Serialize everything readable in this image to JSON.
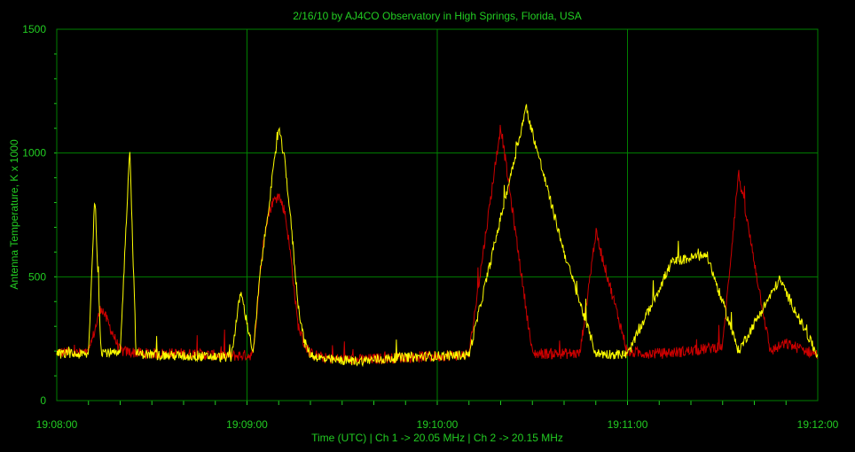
{
  "colors": {
    "background": "#000000",
    "grid": "#008000",
    "text": "#22cc22",
    "ch1": "#cc0000",
    "ch2": "#ffff00"
  },
  "chart_data": {
    "type": "line",
    "title": "2/16/10  by  AJ4CO Observatory  in  High Springs, Florida, USA",
    "xlabel": "Time (UTC)  |  Ch 1 -> 20.05 MHz  |  Ch 2 -> 20.15 MHz",
    "ylabel": "Antenna Temperature, K x 1000",
    "xlim": [
      "19:08:00",
      "19:12:00"
    ],
    "ylim": [
      0,
      1500
    ],
    "x_ticks": [
      "19:08:00",
      "19:09:00",
      "19:10:00",
      "19:11:00",
      "19:12:00"
    ],
    "y_ticks": [
      "0",
      "500",
      "1000",
      "1500"
    ],
    "grid": true,
    "legend": "none",
    "series": [
      {
        "color": "#cc0000",
        "x_seconds_after_19_08_00": [
          0,
          10,
          14,
          20,
          28,
          40,
          55,
          62,
          64,
          66,
          68,
          70,
          72,
          74,
          76,
          78,
          80,
          85,
          95,
          110,
          130,
          140,
          150,
          165,
          170,
          180,
          190,
          200,
          210,
          215,
          225,
          230,
          240
        ],
        "values": [
          195,
          190,
          380,
          200,
          190,
          190,
          180,
          185,
          500,
          720,
          800,
          830,
          760,
          560,
          310,
          230,
          190,
          170,
          165,
          175,
          185,
          1110,
          190,
          190,
          680,
          195,
          190,
          200,
          220,
          920,
          200,
          230,
          185
        ]
      },
      {
        "color": "#ffff00",
        "x_seconds_after_19_08_00": [
          0,
          10,
          12,
          14,
          20,
          23,
          25,
          30,
          40,
          55,
          58,
          62,
          64,
          66,
          68,
          70,
          72,
          74,
          76,
          78,
          80,
          85,
          95,
          110,
          130,
          148,
          160,
          170,
          180,
          194,
          205,
          215,
          228,
          240
        ],
        "values": [
          190,
          185,
          830,
          200,
          185,
          1030,
          190,
          185,
          180,
          175,
          440,
          190,
          500,
          700,
          900,
          1100,
          960,
          700,
          400,
          240,
          185,
          165,
          160,
          175,
          185,
          1180,
          600,
          190,
          185,
          560,
          590,
          200,
          490,
          180
        ]
      }
    ]
  }
}
